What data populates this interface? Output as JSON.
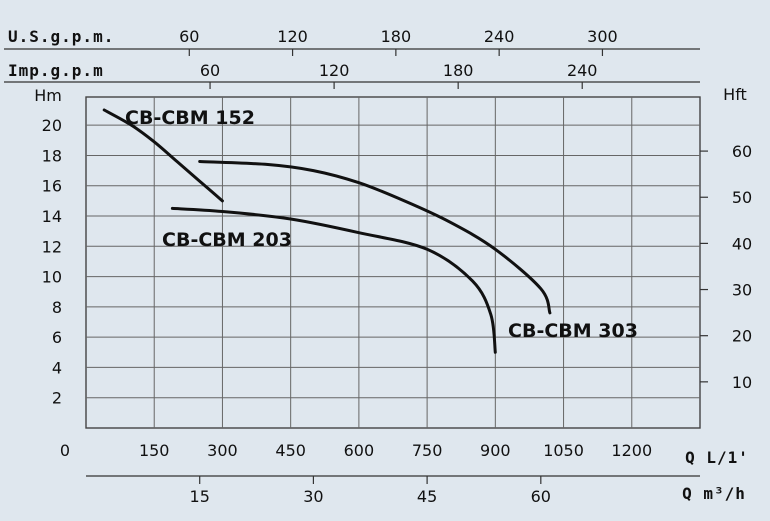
{
  "chart_data": {
    "type": "line",
    "axes": {
      "top_usgpm": {
        "label": "U.S.g.p.m.",
        "ticks": [
          "60",
          "120",
          "180",
          "240",
          "300"
        ],
        "values": [
          60,
          120,
          180,
          240,
          300
        ]
      },
      "top_impgpm": {
        "label": "Imp.g.p.m",
        "ticks": [
          "60",
          "120",
          "180",
          "240"
        ],
        "values": [
          60,
          120,
          180,
          240
        ]
      },
      "left_hm": {
        "label": "Hm",
        "ticks": [
          "20",
          "18",
          "16",
          "14",
          "12",
          "10",
          "8",
          "6",
          "4",
          "2"
        ],
        "ylim": [
          0,
          21
        ]
      },
      "right_hft": {
        "label": "Hft",
        "ticks": [
          "60",
          "50",
          "40",
          "30",
          "20",
          "10"
        ]
      },
      "bottom_lmin": {
        "label": "Q L/1'",
        "ticks": [
          "0",
          "150",
          "300",
          "450",
          "600",
          "750",
          "900",
          "1050",
          "1200"
        ],
        "xlim": [
          0,
          1350
        ]
      },
      "bottom_m3h": {
        "label": "Q m³/h",
        "ticks": [
          "15",
          "30",
          "45",
          "60"
        ],
        "values": [
          15,
          30,
          45,
          60
        ]
      }
    },
    "grid": true,
    "series": [
      {
        "name": "CB-CBM 152",
        "x": [
          40,
          100,
          150,
          200,
          250,
          300
        ],
        "y": [
          21.0,
          20.0,
          18.9,
          17.6,
          16.3,
          15.0
        ]
      },
      {
        "name": "CB-CBM 203",
        "x": [
          190,
          300,
          450,
          600,
          750,
          850,
          890,
          900
        ],
        "y": [
          14.5,
          14.3,
          13.8,
          12.9,
          11.8,
          9.7,
          7.5,
          5.0
        ]
      },
      {
        "name": "CB-CBM 303",
        "x": [
          250,
          400,
          500,
          600,
          700,
          800,
          900,
          1000,
          1020
        ],
        "y": [
          17.6,
          17.4,
          17.0,
          16.2,
          15.0,
          13.6,
          11.8,
          9.2,
          7.6
        ]
      }
    ]
  }
}
